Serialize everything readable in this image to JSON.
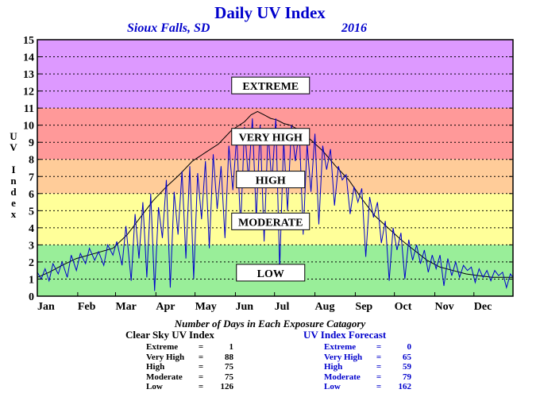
{
  "header": {
    "title": "Daily UV Index",
    "location": "Sioux Falls, SD",
    "year": "2016"
  },
  "axis": {
    "ylabel_letters": [
      "U",
      "V",
      "",
      "I",
      "n",
      "d",
      "e",
      "x"
    ]
  },
  "caption": "Number of Days in Each Exposure Catagory",
  "clear_sky": {
    "heading": "Clear Sky UV Index",
    "rows": [
      {
        "label": "Extreme",
        "value": "1"
      },
      {
        "label": "Very High",
        "value": "88"
      },
      {
        "label": "High",
        "value": "75"
      },
      {
        "label": "Moderate",
        "value": "75"
      },
      {
        "label": "Low",
        "value": "126"
      }
    ]
  },
  "forecast": {
    "heading": "UV Index Forecast",
    "rows": [
      {
        "label": "Extreme",
        "value": "0"
      },
      {
        "label": "Very High",
        "value": "65"
      },
      {
        "label": "High",
        "value": "59"
      },
      {
        "label": "Moderate",
        "value": "79"
      },
      {
        "label": "Low",
        "value": "162"
      }
    ]
  },
  "chart_data": {
    "type": "line",
    "ylim": [
      0,
      15
    ],
    "xlim": [
      1,
      366
    ],
    "grid": true,
    "y_ticks": [
      "0",
      "1",
      "2",
      "3",
      "4",
      "5",
      "6",
      "7",
      "8",
      "9",
      "10",
      "11",
      "12",
      "13",
      "14",
      "15"
    ],
    "x_ticks": [
      {
        "label": "Jan",
        "day": 1
      },
      {
        "label": "Feb",
        "day": 32
      },
      {
        "label": "Mar",
        "day": 61
      },
      {
        "label": "Apr",
        "day": 92
      },
      {
        "label": "May",
        "day": 122
      },
      {
        "label": "Jun",
        "day": 153
      },
      {
        "label": "Jul",
        "day": 183
      },
      {
        "label": "Aug",
        "day": 214
      },
      {
        "label": "Sep",
        "day": 245
      },
      {
        "label": "Oct",
        "day": 275
      },
      {
        "label": "Nov",
        "day": 306
      },
      {
        "label": "Dec",
        "day": 336
      }
    ],
    "bands": [
      {
        "name": "LOW",
        "from": 0,
        "to": 3,
        "color": "#99ee99",
        "label_y": 1.35
      },
      {
        "name": "MODERATE",
        "from": 3,
        "to": 6,
        "color": "#ffff99",
        "label_y": 4.35
      },
      {
        "name": "HIGH",
        "from": 6,
        "to": 8,
        "color": "#ffcc99",
        "label_y": 6.8
      },
      {
        "name": "VERY HIGH",
        "from": 8,
        "to": 11,
        "color": "#ff9999",
        "label_y": 9.3
      },
      {
        "name": "EXTREME",
        "from": 11,
        "to": 15,
        "color": "#dd99ff",
        "label_y": 12.3
      }
    ],
    "band_label_x_day": 180,
    "series": [
      {
        "key": "clear_sky",
        "color": "#000000",
        "x": [
          1,
          10,
          20,
          31,
          45,
          59,
          70,
          80,
          90,
          100,
          110,
          120,
          130,
          140,
          150,
          160,
          165,
          170,
          175,
          180,
          185,
          190,
          195,
          200,
          210,
          220,
          230,
          240,
          250,
          260,
          270,
          280,
          290,
          300,
          310,
          320,
          330,
          340,
          350,
          366
        ],
        "values": [
          1.1,
          1.4,
          1.8,
          2.2,
          2.5,
          2.8,
          3.6,
          4.6,
          5.6,
          6.4,
          7.1,
          7.9,
          8.4,
          8.9,
          9.7,
          10.2,
          10.6,
          10.8,
          10.6,
          10.4,
          10.3,
          10.1,
          10.0,
          9.8,
          9.2,
          8.5,
          7.6,
          6.8,
          5.7,
          4.7,
          4.0,
          3.3,
          2.7,
          2.1,
          1.7,
          1.5,
          1.3,
          1.2,
          1.1,
          1.1
        ]
      },
      {
        "key": "forecast",
        "color": "#0000cc",
        "x": [
          1,
          4,
          7,
          10,
          13,
          17,
          20,
          24,
          27,
          31,
          34,
          38,
          41,
          45,
          48,
          52,
          55,
          59,
          62,
          66,
          69,
          73,
          76,
          79,
          82,
          85,
          88,
          91,
          94,
          97,
          100,
          103,
          106,
          109,
          112,
          115,
          118,
          121,
          124,
          127,
          130,
          133,
          136,
          139,
          142,
          145,
          148,
          151,
          154,
          157,
          160,
          163,
          166,
          169,
          172,
          175,
          178,
          181,
          184,
          187,
          190,
          193,
          196,
          199,
          202,
          205,
          208,
          211,
          214,
          217,
          220,
          223,
          226,
          229,
          232,
          235,
          238,
          241,
          244,
          247,
          250,
          253,
          256,
          259,
          262,
          265,
          268,
          271,
          274,
          277,
          280,
          283,
          286,
          289,
          292,
          295,
          298,
          301,
          304,
          307,
          310,
          313,
          316,
          319,
          322,
          325,
          328,
          331,
          334,
          337,
          340,
          343,
          346,
          349,
          352,
          355,
          358,
          361,
          364,
          366
        ],
        "values": [
          1.4,
          1.0,
          1.6,
          0.9,
          1.9,
          1.3,
          2.0,
          1.1,
          2.4,
          1.5,
          2.5,
          1.9,
          2.8,
          2.1,
          2.6,
          1.8,
          3.0,
          2.4,
          3.2,
          1.8,
          4.1,
          0.9,
          4.8,
          2.2,
          5.5,
          1.1,
          6.0,
          0.3,
          5.2,
          3.4,
          6.8,
          0.5,
          6.1,
          3.6,
          7.3,
          2.2,
          7.6,
          1.0,
          7.2,
          4.5,
          7.9,
          2.8,
          8.3,
          5.1,
          7.6,
          3.4,
          8.8,
          6.2,
          9.4,
          4.0,
          9.9,
          6.8,
          10.4,
          4.5,
          10.0,
          3.2,
          9.6,
          6.6,
          10.4,
          1.6,
          9.1,
          5.0,
          10.0,
          7.9,
          9.7,
          3.6,
          8.9,
          6.1,
          9.5,
          4.2,
          8.8,
          7.4,
          8.6,
          5.3,
          7.6,
          6.8,
          7.1,
          4.8,
          6.4,
          5.5,
          6.3,
          2.3,
          5.8,
          4.6,
          5.5,
          3.1,
          4.4,
          0.9,
          4.0,
          2.7,
          3.7,
          1.0,
          3.3,
          2.1,
          3.0,
          1.9,
          2.7,
          1.4,
          2.4,
          1.6,
          2.4,
          0.6,
          2.2,
          1.2,
          2.0,
          1.1,
          1.8,
          1.5,
          1.7,
          0.8,
          1.6,
          1.1,
          1.5,
          0.9,
          1.5,
          1.2,
          1.4,
          0.5,
          1.3,
          1.1
        ]
      }
    ]
  }
}
